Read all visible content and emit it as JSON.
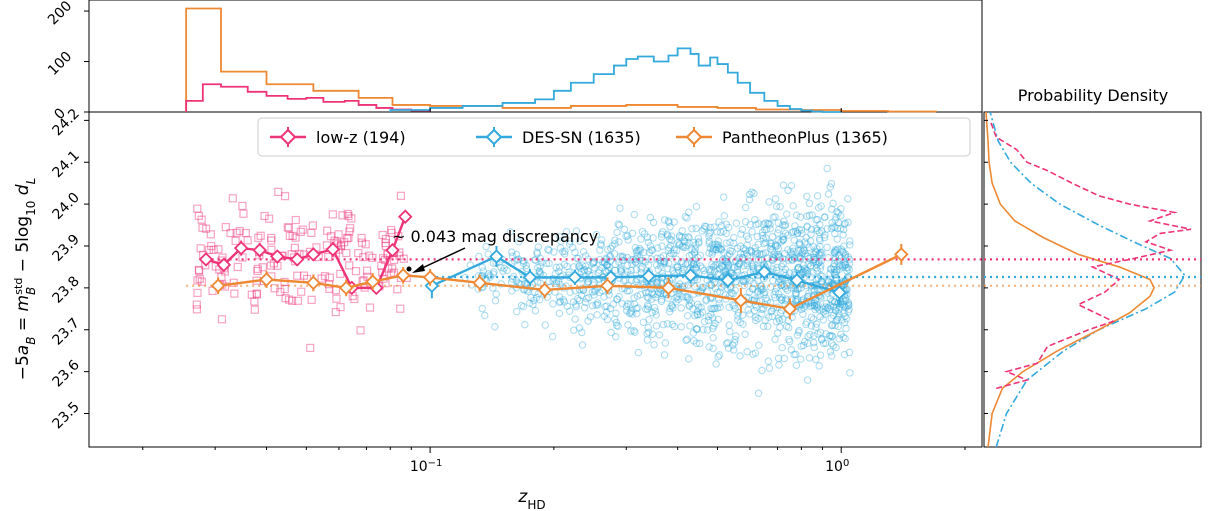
{
  "colors": {
    "lowz": "#EE3377",
    "des": "#33A9DD",
    "pantheon": "#EE8833",
    "axis": "#000000",
    "background": "#ffffff"
  },
  "labels": {
    "xlabel": "z_HD",
    "ylabel": "-5a_B = m_B^std - 5log10 d_L",
    "density_title": "Probability Density",
    "annotation": "~ 0.043 mag discrepancy"
  },
  "chart_data": [
    {
      "type": "line",
      "title": "",
      "xlabel": "z_HD",
      "ylabel": "-5a_B = m_B^std - 5log10 d_L",
      "xscale": "log",
      "xlim": [
        0.0148,
        2.2
      ],
      "ylim": [
        23.42,
        24.22
      ],
      "xticks": [
        {
          "value": 0.1,
          "label": "10^-1"
        },
        {
          "value": 1,
          "label": "10^0"
        }
      ],
      "yticks": [
        23.5,
        23.6,
        23.7,
        23.8,
        23.9,
        24.0,
        24.1,
        24.2
      ],
      "grid": false,
      "legend_position": "top-center",
      "series": [
        {
          "name": "low-z (194)",
          "key": "lowz",
          "marker": "diamond",
          "x": [
            0.0285,
            0.0315,
            0.0347,
            0.0385,
            0.0425,
            0.0475,
            0.052,
            0.058,
            0.0645,
            0.074,
            0.081,
            0.087
          ],
          "y": [
            23.868,
            23.855,
            23.895,
            23.89,
            23.875,
            23.868,
            23.88,
            23.892,
            23.8,
            23.8,
            23.89,
            23.97
          ],
          "err": [
            0.015,
            0.015,
            0.018,
            0.018,
            0.015,
            0.015,
            0.015,
            0.018,
            0.015,
            0.015,
            0.015,
            0.01
          ],
          "mean_line": 23.868
        },
        {
          "name": "DES-SN (1635)",
          "key": "des",
          "marker": "diamond",
          "x": [
            0.101,
            0.145,
            0.175,
            0.225,
            0.275,
            0.34,
            0.43,
            0.53,
            0.65,
            0.78,
            0.99
          ],
          "y": [
            23.805,
            23.875,
            23.825,
            23.825,
            23.825,
            23.828,
            23.83,
            23.818,
            23.838,
            23.818,
            23.789
          ],
          "err": [
            0.03,
            0.025,
            0.02,
            0.018,
            0.018,
            0.02,
            0.02,
            0.018,
            0.02,
            0.02,
            0.03
          ],
          "mean_line": 23.826
        },
        {
          "name": "PantheonPlus (1365)",
          "key": "pantheon",
          "marker": "diamond",
          "x": [
            0.0305,
            0.04,
            0.052,
            0.0625,
            0.0725,
            0.086,
            0.1,
            0.132,
            0.19,
            0.27,
            0.38,
            0.57,
            0.75,
            1.4
          ],
          "y": [
            23.805,
            23.82,
            23.812,
            23.8,
            23.815,
            23.83,
            23.825,
            23.812,
            23.795,
            23.805,
            23.8,
            23.77,
            23.75,
            23.88
          ],
          "err": [
            0.02,
            0.02,
            0.02,
            0.02,
            0.02,
            0.02,
            0.02,
            0.02,
            0.02,
            0.02,
            0.025,
            0.03,
            0.025,
            0.025
          ],
          "mean_line": 23.805
        }
      ]
    },
    {
      "type": "bar",
      "title": "",
      "xscale": "log",
      "ylim": [
        0,
        210
      ],
      "yticks": [
        0,
        100,
        200
      ],
      "series": [
        {
          "name": "PantheonPlus",
          "key": "pantheon",
          "edges": [
            0.0255,
            0.031,
            0.04,
            0.052,
            0.067,
            0.081,
            0.1,
            0.15,
            0.22,
            0.3,
            0.4,
            0.5,
            0.62,
            0.8,
            1.0,
            1.3,
            1.7
          ],
          "counts": [
            205,
            80,
            55,
            42,
            28,
            14,
            12,
            8,
            12,
            14,
            10,
            8,
            5,
            4,
            2,
            1
          ]
        },
        {
          "name": "low-z",
          "key": "lowz",
          "edges": [
            0.0255,
            0.028,
            0.031,
            0.036,
            0.04,
            0.045,
            0.05,
            0.055,
            0.062,
            0.067,
            0.074,
            0.081,
            0.09,
            0.1
          ],
          "counts": [
            22,
            55,
            50,
            40,
            32,
            26,
            28,
            20,
            22,
            14,
            8,
            5,
            3
          ]
        },
        {
          "name": "DES-SN",
          "key": "des",
          "edges": [
            0.08,
            0.1,
            0.12,
            0.15,
            0.18,
            0.2,
            0.22,
            0.25,
            0.28,
            0.3,
            0.32,
            0.35,
            0.38,
            0.4,
            0.43,
            0.45,
            0.48,
            0.5,
            0.53,
            0.56,
            0.6,
            0.65,
            0.7,
            0.75,
            0.8,
            0.85,
            0.9,
            1.0
          ],
          "counts": [
            4,
            8,
            12,
            18,
            25,
            42,
            58,
            75,
            92,
            105,
            110,
            100,
            112,
            126,
            115,
            92,
            108,
            95,
            78,
            58,
            38,
            22,
            12,
            6,
            3,
            1,
            0
          ]
        }
      ]
    },
    {
      "type": "line",
      "title": "Probability Density",
      "orientation": "vertical",
      "ylim": [
        23.42,
        24.22
      ],
      "series": [
        {
          "name": "DES-SN",
          "key": "des",
          "style": "dashdot",
          "y": [
            23.42,
            23.5,
            23.58,
            23.65,
            23.7,
            23.75,
            23.79,
            23.83,
            23.87,
            23.91,
            23.95,
            24.0,
            24.05,
            24.1,
            24.15,
            24.22
          ],
          "density": [
            0.05,
            0.1,
            0.2,
            0.38,
            0.55,
            0.78,
            0.92,
            0.97,
            0.9,
            0.72,
            0.55,
            0.36,
            0.22,
            0.12,
            0.06,
            0.02
          ]
        },
        {
          "name": "PantheonPlus",
          "key": "pantheon",
          "style": "solid",
          "y": [
            23.42,
            23.5,
            23.56,
            23.6,
            23.65,
            23.7,
            23.74,
            23.78,
            23.8,
            23.82,
            23.85,
            23.88,
            23.92,
            23.96,
            24.0,
            24.05,
            24.1,
            24.15,
            24.22
          ],
          "density": [
            0.01,
            0.03,
            0.08,
            0.18,
            0.35,
            0.55,
            0.7,
            0.8,
            0.82,
            0.8,
            0.65,
            0.45,
            0.28,
            0.14,
            0.07,
            0.03,
            0.015,
            0.01,
            0.0
          ]
        },
        {
          "name": "low-z",
          "key": "lowz",
          "style": "dashed",
          "y": [
            23.56,
            23.58,
            23.6,
            23.62,
            23.66,
            23.7,
            23.72,
            23.76,
            23.79,
            23.82,
            23.85,
            23.87,
            23.89,
            23.91,
            23.93,
            23.94,
            23.96,
            23.98,
            24.0,
            24.02,
            24.05,
            24.08,
            24.1,
            24.13,
            24.16,
            24.2
          ],
          "density": [
            0.05,
            0.2,
            0.1,
            0.25,
            0.3,
            0.5,
            0.62,
            0.45,
            0.58,
            0.65,
            0.52,
            0.72,
            0.9,
            0.78,
            0.85,
            1.0,
            0.8,
            0.92,
            0.7,
            0.55,
            0.42,
            0.3,
            0.2,
            0.15,
            0.05,
            0.02
          ]
        }
      ]
    }
  ]
}
